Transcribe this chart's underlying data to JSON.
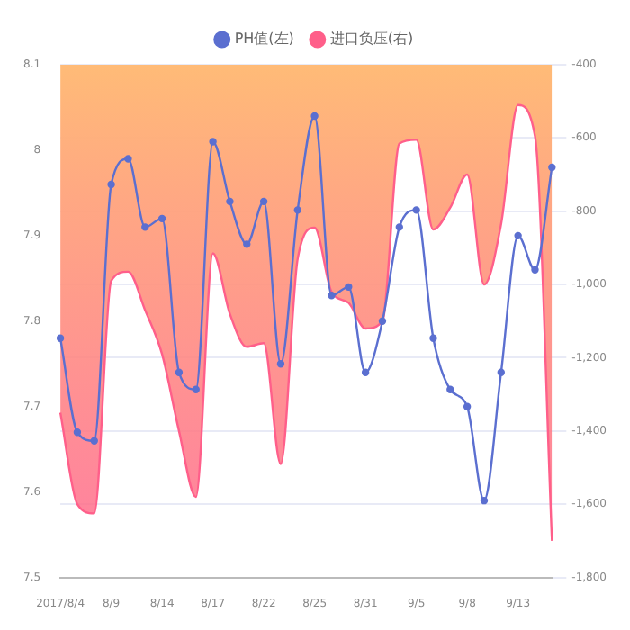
{
  "chart_data": {
    "type": "line",
    "categories": [
      "2017/8/4",
      null,
      null,
      "8/9",
      null,
      null,
      "8/14",
      null,
      null,
      "8/17",
      null,
      null,
      "8/22",
      null,
      null,
      "8/25",
      null,
      null,
      "8/31",
      null,
      null,
      "9/5",
      null,
      null,
      "9/8",
      null,
      null,
      "9/13",
      null,
      null
    ],
    "series": [
      {
        "name": "PH值(左)",
        "color": "#5b6fd0",
        "marker": "circle",
        "values": [
          7.78,
          7.67,
          7.66,
          7.96,
          7.99,
          7.91,
          7.92,
          7.74,
          7.72,
          8.01,
          7.94,
          7.89,
          7.94,
          7.75,
          7.93,
          8.04,
          7.83,
          7.84,
          7.74,
          7.8,
          7.91,
          7.93,
          7.78,
          7.72,
          7.7,
          7.59,
          7.74,
          7.9,
          7.86,
          7.98
        ]
      },
      {
        "name": "进口负压(右)",
        "type": "area",
        "axis": "y2",
        "color": "#ff5f8a",
        "values": [
          -1350,
          -1600,
          -1625,
          -990,
          -965,
          -1070,
          -1190,
          -1400,
          -1580,
          -915,
          -1080,
          -1170,
          -1160,
          -1490,
          -930,
          -845,
          -1020,
          -1050,
          -1120,
          -1100,
          -615,
          -605,
          -850,
          -790,
          -700,
          -1000,
          -835,
          -510,
          -595,
          -1700
        ]
      }
    ],
    "ylim": [
      7.5,
      8.1
    ],
    "yticks": [
      7.5,
      7.6,
      7.7,
      7.8,
      7.9,
      8,
      8.1
    ],
    "y2lim": [
      -1800,
      -400
    ],
    "y2ticks": [
      {
        "value": -1800,
        "label": "-1,800"
      },
      {
        "value": -1600,
        "label": "-1,600"
      },
      {
        "value": -1400,
        "label": "-1,400"
      },
      {
        "value": -1200,
        "label": "-1,200"
      },
      {
        "value": -1000,
        "label": "-1,000"
      },
      {
        "value": -800,
        "label": "-800"
      },
      {
        "value": -600,
        "label": "-600"
      },
      {
        "value": -400,
        "label": "-400"
      }
    ],
    "grid": "y",
    "legend": "top"
  }
}
